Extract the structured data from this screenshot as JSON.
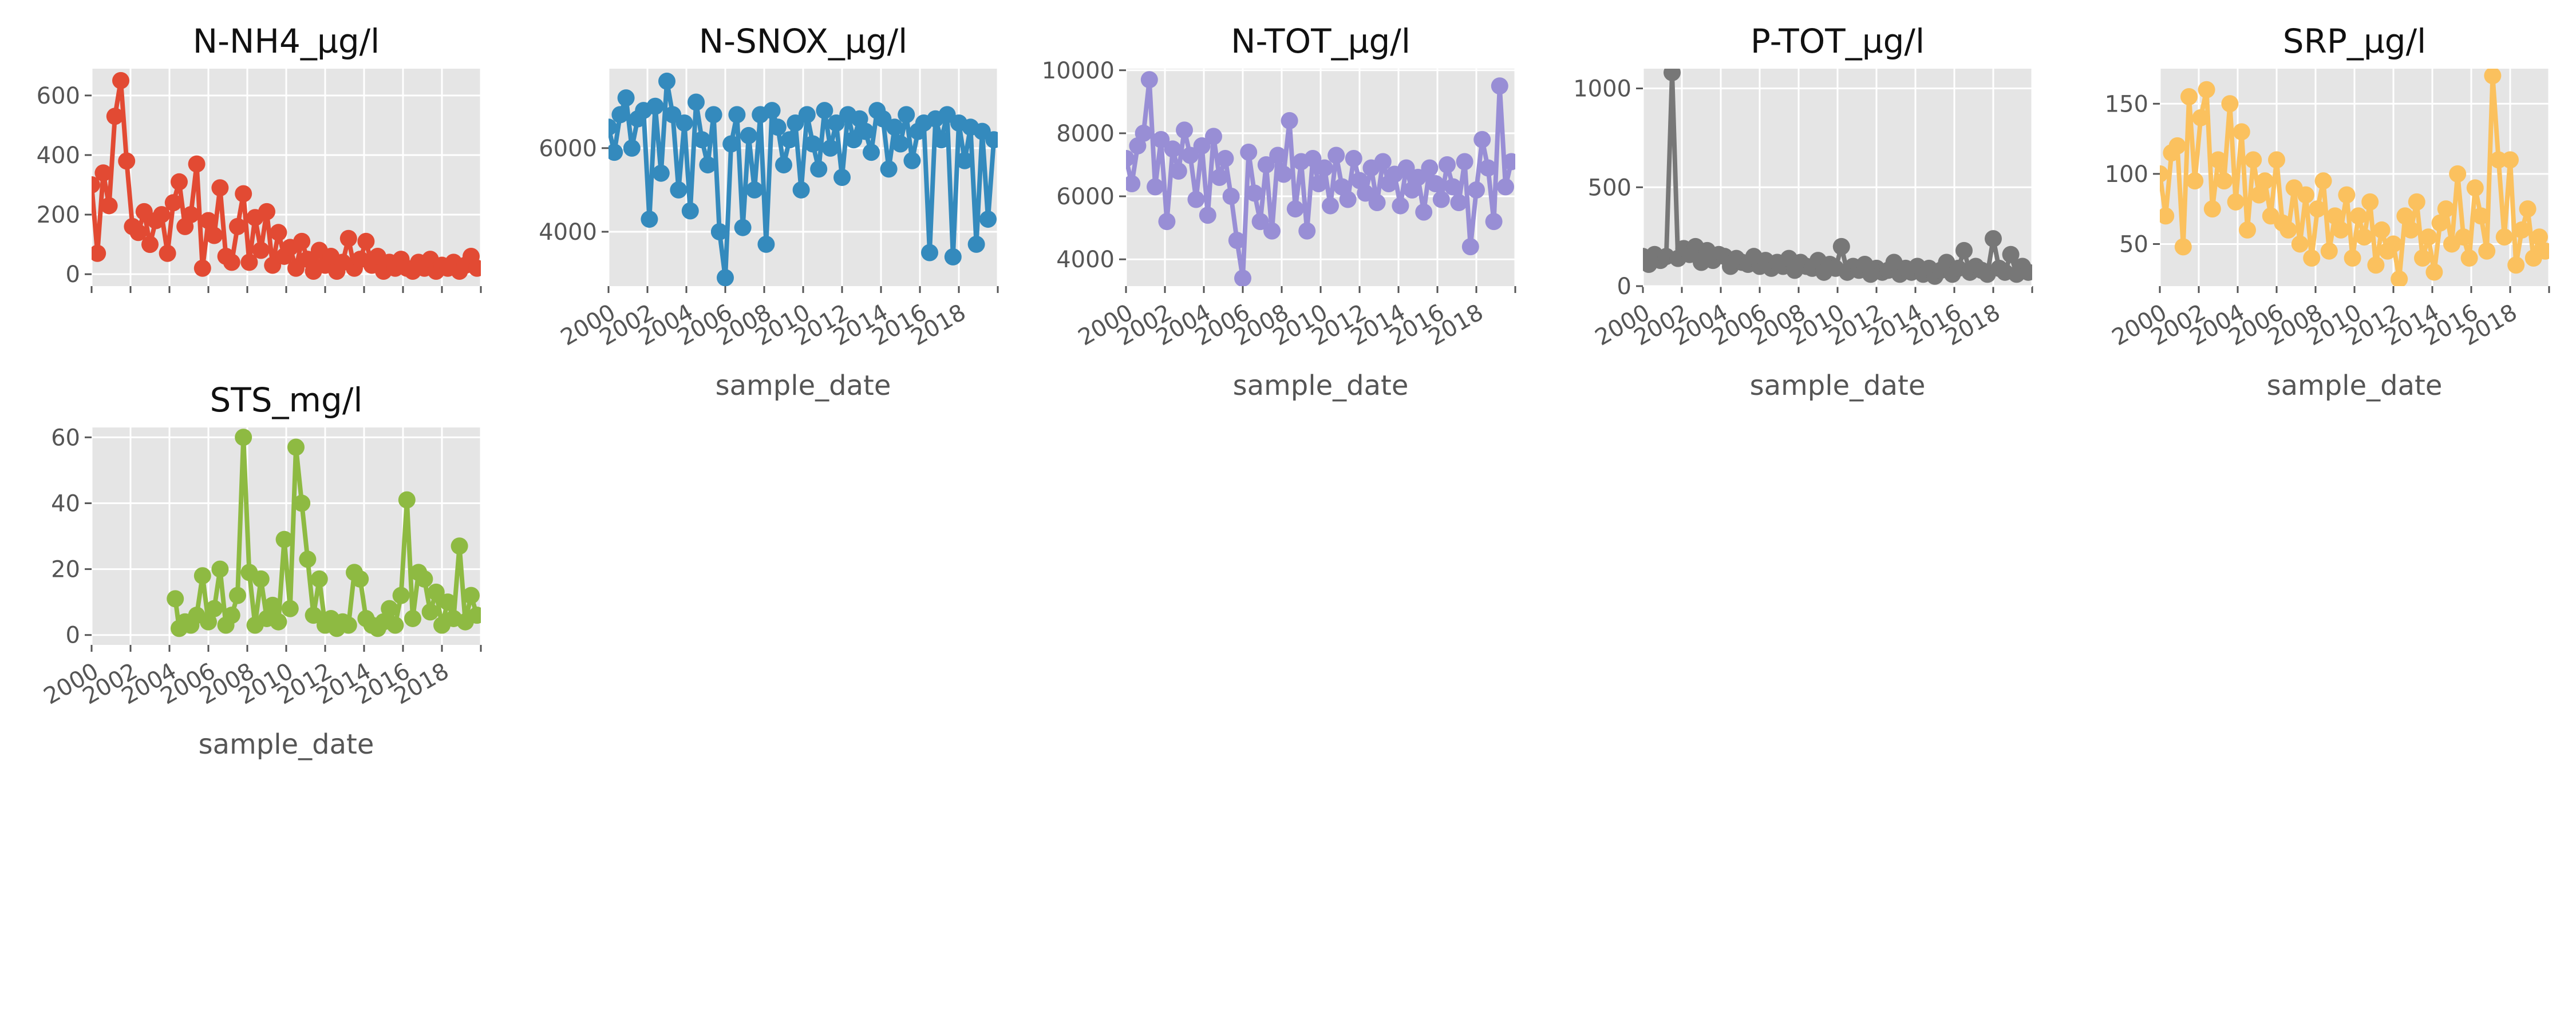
{
  "chart_data": [
    {
      "type": "line",
      "title": "N-NH4_µg/l",
      "xlabel": "",
      "ylabel": "",
      "color": "#E24A33",
      "date_range": [
        2000,
        2020
      ],
      "ylim": [
        -40,
        690
      ],
      "yticks": [
        0,
        200,
        400,
        600
      ],
      "xticks": [],
      "series": [
        {
          "x": [
            2000.0,
            2000.3,
            2000.6,
            2000.9,
            2001.2,
            2001.5,
            2001.8,
            2002.1,
            2002.4,
            2002.7,
            2003.0,
            2003.3,
            2003.6,
            2003.9,
            2004.2,
            2004.5,
            2004.8,
            2005.1,
            2005.4,
            2005.7,
            2006.0,
            2006.3,
            2006.6,
            2006.9,
            2007.2,
            2007.5,
            2007.8,
            2008.1,
            2008.4,
            2008.7,
            2009.0,
            2009.3,
            2009.6,
            2009.9,
            2010.2,
            2010.5,
            2010.8,
            2011.1,
            2011.4,
            2011.7,
            2012.0,
            2012.3,
            2012.6,
            2012.9,
            2013.2,
            2013.5,
            2013.8,
            2014.1,
            2014.4,
            2014.7,
            2015.0,
            2015.3,
            2015.6,
            2015.9,
            2016.2,
            2016.5,
            2016.8,
            2017.1,
            2017.4,
            2017.7,
            2018.0,
            2018.3,
            2018.6,
            2018.9,
            2019.2,
            2019.5,
            2019.8
          ],
          "y": [
            300,
            70,
            340,
            230,
            530,
            650,
            380,
            160,
            140,
            210,
            100,
            180,
            200,
            70,
            240,
            310,
            160,
            200,
            370,
            20,
            180,
            130,
            290,
            60,
            40,
            160,
            270,
            40,
            190,
            80,
            210,
            30,
            140,
            60,
            90,
            20,
            110,
            50,
            10,
            80,
            30,
            60,
            10,
            40,
            120,
            20,
            50,
            110,
            30,
            60,
            10,
            40,
            20,
            50,
            20,
            10,
            40,
            20,
            50,
            10,
            30,
            20,
            40,
            10,
            30,
            60,
            20
          ]
        }
      ]
    },
    {
      "type": "line",
      "title": "N-SNOX_µg/l",
      "xlabel": "sample_date",
      "ylabel": "",
      "color": "#348ABD",
      "date_range": [
        2000,
        2020
      ],
      "ylim": [
        2700,
        7900
      ],
      "yticks": [
        4000,
        6000
      ],
      "xticks": [
        "2000",
        "2002",
        "2004",
        "2006",
        "2008",
        "2010",
        "2012",
        "2014",
        "2016",
        "2018"
      ],
      "series": [
        {
          "x": [
            2000.0,
            2000.3,
            2000.6,
            2000.9,
            2001.2,
            2001.5,
            2001.8,
            2002.1,
            2002.4,
            2002.7,
            2003.0,
            2003.3,
            2003.6,
            2003.9,
            2004.2,
            2004.5,
            2004.8,
            2005.1,
            2005.4,
            2005.7,
            2006.0,
            2006.3,
            2006.6,
            2006.9,
            2007.2,
            2007.5,
            2007.8,
            2008.1,
            2008.4,
            2008.7,
            2009.0,
            2009.3,
            2009.6,
            2009.9,
            2010.2,
            2010.5,
            2010.8,
            2011.1,
            2011.4,
            2011.7,
            2012.0,
            2012.3,
            2012.6,
            2012.9,
            2013.2,
            2013.5,
            2013.8,
            2014.1,
            2014.4,
            2014.7,
            2015.0,
            2015.3,
            2015.6,
            2015.9,
            2016.2,
            2016.5,
            2016.8,
            2017.1,
            2017.4,
            2017.7,
            2018.0,
            2018.3,
            2018.6,
            2018.9,
            2019.2,
            2019.5,
            2019.8
          ],
          "y": [
            6500,
            5900,
            6800,
            7200,
            6000,
            6700,
            6900,
            4300,
            7000,
            5400,
            7600,
            6800,
            5000,
            6600,
            4500,
            7100,
            6200,
            5600,
            6800,
            4000,
            2900,
            6100,
            6800,
            4100,
            6300,
            5000,
            6800,
            3700,
            6900,
            6500,
            5600,
            6200,
            6600,
            5000,
            6800,
            6100,
            5500,
            6900,
            6000,
            6600,
            5300,
            6800,
            6200,
            6700,
            6400,
            5900,
            6900,
            6700,
            5500,
            6500,
            6100,
            6800,
            5700,
            6400,
            6600,
            3500,
            6700,
            6200,
            6800,
            3400,
            6600,
            5700,
            6500,
            3700,
            6400,
            4300,
            6200
          ]
        }
      ]
    },
    {
      "type": "line",
      "title": "N-TOT_µg/l",
      "xlabel": "sample_date",
      "ylabel": "",
      "color": "#988ED5",
      "date_range": [
        2000,
        2020
      ],
      "ylim": [
        3150,
        10050
      ],
      "yticks": [
        4000,
        6000,
        8000,
        10000
      ],
      "xticks": [
        "2000",
        "2002",
        "2004",
        "2006",
        "2008",
        "2010",
        "2012",
        "2014",
        "2016",
        "2018"
      ],
      "series": [
        {
          "x": [
            2000.0,
            2000.3,
            2000.6,
            2000.9,
            2001.2,
            2001.5,
            2001.8,
            2002.1,
            2002.4,
            2002.7,
            2003.0,
            2003.3,
            2003.6,
            2003.9,
            2004.2,
            2004.5,
            2004.8,
            2005.1,
            2005.4,
            2005.7,
            2006.0,
            2006.3,
            2006.6,
            2006.9,
            2007.2,
            2007.5,
            2007.8,
            2008.1,
            2008.4,
            2008.7,
            2009.0,
            2009.3,
            2009.6,
            2009.9,
            2010.2,
            2010.5,
            2010.8,
            2011.1,
            2011.4,
            2011.7,
            2012.0,
            2012.3,
            2012.6,
            2012.9,
            2013.2,
            2013.5,
            2013.8,
            2014.1,
            2014.4,
            2014.7,
            2015.0,
            2015.3,
            2015.6,
            2015.9,
            2016.2,
            2016.5,
            2016.8,
            2017.1,
            2017.4,
            2017.7,
            2018.0,
            2018.3,
            2018.6,
            2018.9,
            2019.2,
            2019.5,
            2019.8
          ],
          "y": [
            7200,
            6400,
            7600,
            8000,
            9700,
            6300,
            7800,
            5200,
            7500,
            6800,
            8100,
            7300,
            5900,
            7600,
            5400,
            7900,
            6600,
            7200,
            6000,
            4600,
            3400,
            7400,
            6100,
            5200,
            7000,
            4900,
            7300,
            6700,
            8400,
            5600,
            7100,
            4900,
            7200,
            6400,
            6900,
            5700,
            7300,
            6300,
            5900,
            7200,
            6500,
            6100,
            6900,
            5800,
            7100,
            6400,
            6700,
            5700,
            6900,
            6200,
            6600,
            5500,
            6900,
            6400,
            5900,
            7000,
            6300,
            5800,
            7100,
            4400,
            6200,
            7800,
            6900,
            5200,
            9500,
            6300,
            7100
          ]
        }
      ]
    },
    {
      "type": "line",
      "title": "P-TOT_µg/l",
      "xlabel": "sample_date",
      "ylabel": "",
      "color": "#777777",
      "date_range": [
        2000,
        2020
      ],
      "ylim": [
        0,
        1100
      ],
      "yticks": [
        0,
        500,
        1000
      ],
      "xticks": [
        "2000",
        "2002",
        "2004",
        "2006",
        "2008",
        "2010",
        "2012",
        "2014",
        "2016",
        "2018"
      ],
      "series": [
        {
          "x": [
            2000.0,
            2000.3,
            2000.6,
            2000.9,
            2001.2,
            2001.5,
            2001.8,
            2002.1,
            2002.4,
            2002.7,
            2003.0,
            2003.3,
            2003.6,
            2003.9,
            2004.2,
            2004.5,
            2004.8,
            2005.1,
            2005.4,
            2005.7,
            2006.0,
            2006.3,
            2006.6,
            2006.9,
            2007.2,
            2007.5,
            2007.8,
            2008.1,
            2008.4,
            2008.7,
            2009.0,
            2009.3,
            2009.6,
            2009.9,
            2010.2,
            2010.5,
            2010.8,
            2011.1,
            2011.4,
            2011.7,
            2012.0,
            2012.3,
            2012.6,
            2012.9,
            2013.2,
            2013.5,
            2013.8,
            2014.1,
            2014.4,
            2014.7,
            2015.0,
            2015.3,
            2015.6,
            2015.9,
            2016.2,
            2016.5,
            2016.8,
            2017.1,
            2017.4,
            2017.7,
            2018.0,
            2018.3,
            2018.6,
            2018.9,
            2019.2,
            2019.5,
            2019.8
          ],
          "y": [
            150,
            110,
            160,
            130,
            150,
            1080,
            140,
            190,
            160,
            200,
            120,
            180,
            130,
            160,
            150,
            100,
            140,
            120,
            110,
            150,
            100,
            130,
            90,
            120,
            100,
            140,
            80,
            120,
            100,
            90,
            130,
            70,
            110,
            90,
            200,
            70,
            100,
            80,
            110,
            60,
            90,
            70,
            80,
            120,
            60,
            90,
            70,
            100,
            60,
            90,
            50,
            80,
            120,
            60,
            90,
            180,
            70,
            100,
            80,
            60,
            240,
            90,
            70,
            160,
            60,
            100,
            70
          ]
        }
      ]
    },
    {
      "type": "line",
      "title": "SRP_µg/l",
      "xlabel": "sample_date",
      "ylabel": "",
      "color": "#FBC15E",
      "date_range": [
        2000,
        2020
      ],
      "ylim": [
        20,
        175
      ],
      "yticks": [
        50,
        100,
        150
      ],
      "xticks": [
        "2000",
        "2002",
        "2004",
        "2006",
        "2008",
        "2010",
        "2012",
        "2014",
        "2016",
        "2018"
      ],
      "series": [
        {
          "x": [
            2000.0,
            2000.3,
            2000.6,
            2000.9,
            2001.2,
            2001.5,
            2001.8,
            2002.1,
            2002.4,
            2002.7,
            2003.0,
            2003.3,
            2003.6,
            2003.9,
            2004.2,
            2004.5,
            2004.8,
            2005.1,
            2005.4,
            2005.7,
            2006.0,
            2006.3,
            2006.6,
            2006.9,
            2007.2,
            2007.5,
            2007.8,
            2008.1,
            2008.4,
            2008.7,
            2009.0,
            2009.3,
            2009.6,
            2009.9,
            2010.2,
            2010.5,
            2010.8,
            2011.1,
            2011.4,
            2011.7,
            2012.0,
            2012.3,
            2012.6,
            2012.9,
            2013.2,
            2013.5,
            2013.8,
            2014.1,
            2014.4,
            2014.7,
            2015.0,
            2015.3,
            2015.6,
            2015.9,
            2016.2,
            2016.5,
            2016.8,
            2017.1,
            2017.4,
            2017.7,
            2018.0,
            2018.3,
            2018.6,
            2018.9,
            2019.2,
            2019.5,
            2019.8
          ],
          "y": [
            100,
            70,
            115,
            120,
            48,
            155,
            95,
            140,
            160,
            75,
            110,
            95,
            150,
            80,
            130,
            60,
            110,
            85,
            95,
            70,
            110,
            65,
            60,
            90,
            50,
            85,
            40,
            75,
            95,
            45,
            70,
            60,
            85,
            40,
            70,
            55,
            80,
            35,
            60,
            45,
            50,
            25,
            70,
            60,
            80,
            40,
            55,
            30,
            65,
            75,
            50,
            100,
            55,
            40,
            90,
            70,
            45,
            170,
            110,
            55,
            110,
            35,
            60,
            75,
            40,
            55,
            45
          ]
        }
      ]
    },
    {
      "type": "line",
      "title": "STS_mg/l",
      "xlabel": "sample_date",
      "ylabel": "",
      "color": "#8EBA42",
      "date_range": [
        2000,
        2020
      ],
      "ylim": [
        -3,
        63
      ],
      "yticks": [
        0,
        20,
        40,
        60
      ],
      "xticks": [
        "2000",
        "2002",
        "2004",
        "2006",
        "2008",
        "2010",
        "2012",
        "2014",
        "2016",
        "2018"
      ],
      "series": [
        {
          "x": [
            2004.3,
            2004.5,
            2004.8,
            2005.1,
            2005.4,
            2005.7,
            2006.0,
            2006.3,
            2006.6,
            2006.9,
            2007.2,
            2007.5,
            2007.8,
            2008.1,
            2008.4,
            2008.7,
            2009.0,
            2009.3,
            2009.6,
            2009.9,
            2010.2,
            2010.5,
            2010.8,
            2011.1,
            2011.4,
            2011.7,
            2012.0,
            2012.3,
            2012.6,
            2012.9,
            2013.2,
            2013.5,
            2013.8,
            2014.1,
            2014.4,
            2014.7,
            2015.0,
            2015.3,
            2015.6,
            2015.9,
            2016.2,
            2016.5,
            2016.8,
            2017.1,
            2017.4,
            2017.7,
            2018.0,
            2018.3,
            2018.6,
            2018.9,
            2019.2,
            2019.5,
            2019.8
          ],
          "y": [
            11,
            2,
            4,
            3,
            6,
            18,
            4,
            8,
            20,
            3,
            6,
            12,
            60,
            19,
            3,
            17,
            5,
            9,
            4,
            29,
            8,
            57,
            40,
            23,
            6,
            17,
            3,
            5,
            2,
            4,
            3,
            19,
            17,
            5,
            3,
            2,
            4,
            8,
            3,
            12,
            41,
            5,
            19,
            17,
            7,
            13,
            3,
            10,
            5,
            27,
            4,
            12,
            6
          ]
        }
      ]
    }
  ]
}
